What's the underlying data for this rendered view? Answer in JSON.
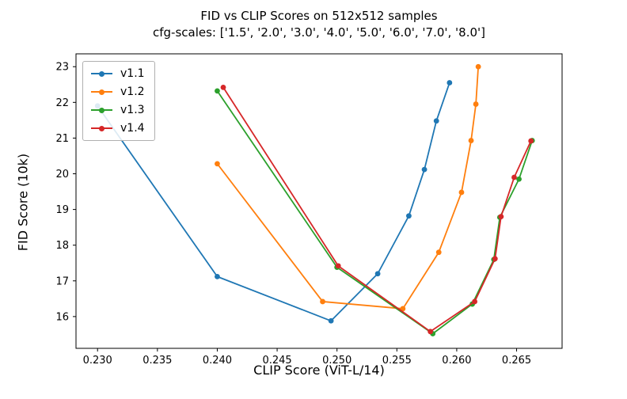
{
  "figure": {
    "title": "FID vs CLIP Scores on 512x512 samples",
    "subtitle": "cfg-scales: ['1.5', '2.0', '3.0', '4.0', '5.0', '6.0', '7.0', '8.0']"
  },
  "chart_data": {
    "type": "line",
    "title": "FID vs CLIP Scores on 512x512 samples",
    "subtitle": "cfg-scales: ['1.5', '2.0', '3.0', '4.0', '5.0', '6.0', '7.0', '8.0']",
    "xlabel": "CLIP Score (ViT-L/14)",
    "ylabel": "FID Score (10k)",
    "xlim": [
      0.2282,
      0.2688
    ],
    "ylim": [
      15.11,
      23.36
    ],
    "xticks": [
      0.23,
      0.235,
      0.24,
      0.245,
      0.25,
      0.255,
      0.26,
      0.265
    ],
    "xtick_labels": [
      "0.230",
      "0.235",
      "0.240",
      "0.245",
      "0.250",
      "0.255",
      "0.260",
      "0.265"
    ],
    "yticks": [
      16,
      17,
      18,
      19,
      20,
      21,
      22,
      23
    ],
    "ytick_labels": [
      "16",
      "17",
      "18",
      "19",
      "20",
      "21",
      "22",
      "23"
    ],
    "grid": false,
    "legend_position": "upper left",
    "cfg_scales": [
      "1.5",
      "2.0",
      "3.0",
      "4.0",
      "5.0",
      "6.0",
      "7.0",
      "8.0"
    ],
    "series": [
      {
        "name": "v1.1",
        "color": "#1f77b4",
        "x": [
          0.23,
          0.24,
          0.2495,
          0.2534,
          0.256,
          0.2573,
          0.2583,
          0.2594
        ],
        "y": [
          21.9,
          17.12,
          15.88,
          17.2,
          18.82,
          20.12,
          21.48,
          22.55
        ]
      },
      {
        "name": "v1.2",
        "color": "#ff7f0e",
        "x": [
          0.24,
          0.2488,
          0.2555,
          0.2585,
          0.2604,
          0.2612,
          0.2616,
          0.2618
        ],
        "y": [
          20.28,
          16.42,
          16.22,
          17.8,
          19.48,
          20.93,
          21.95,
          23.0
        ]
      },
      {
        "name": "v1.3",
        "color": "#2ca02c",
        "x": [
          0.24,
          0.25,
          0.258,
          0.2613,
          0.2631,
          0.2636,
          0.2652,
          0.2663
        ],
        "y": [
          22.32,
          17.38,
          15.52,
          16.35,
          17.6,
          18.78,
          19.85,
          20.93
        ]
      },
      {
        "name": "v1.4",
        "color": "#d62728",
        "x": [
          0.2405,
          0.2501,
          0.2578,
          0.2615,
          0.2632,
          0.2637,
          0.2648,
          0.2662
        ],
        "y": [
          22.42,
          17.42,
          15.58,
          16.42,
          17.62,
          18.8,
          19.9,
          20.92
        ]
      }
    ]
  }
}
